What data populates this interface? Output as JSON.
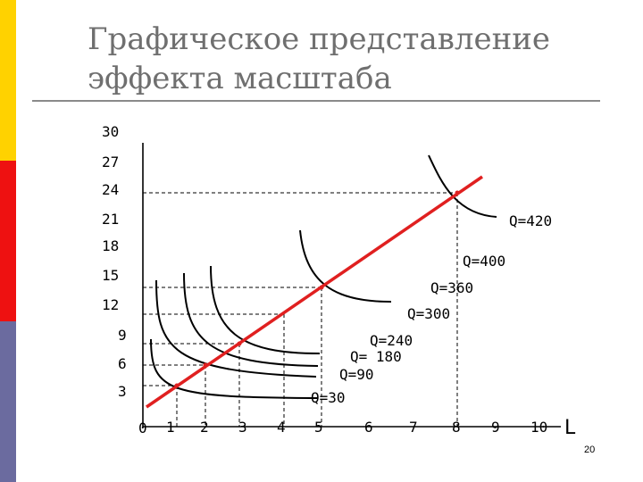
{
  "slide": {
    "title_line1": "Графическое представление",
    "title_line2": "эффекта масштаба",
    "slide_number": "20",
    "sidebar_colors": [
      "#ffd200",
      "#ee1111",
      "#6b6b9f"
    ]
  },
  "chart_data": {
    "type": "diagram",
    "x_axis_label": "L",
    "x_ticks": [
      0,
      1,
      2,
      3,
      4,
      5,
      6,
      7,
      8,
      9,
      10
    ],
    "y_ticks": [
      3,
      6,
      9,
      12,
      15,
      18,
      21,
      24,
      27,
      30
    ],
    "ray": {
      "from": [
        0,
        0
      ],
      "to": [
        8.8,
        25.2
      ],
      "color": "#e02020"
    },
    "isoquant_labels": [
      "Q=420",
      "Q=400",
      "Q=360",
      "Q=300",
      "Q=240",
      "Q= 180",
      "Q=90",
      "Q=30"
    ],
    "ray_points": [
      [
        1,
        3
      ],
      [
        2,
        6
      ],
      [
        3,
        9
      ],
      [
        5,
        15
      ],
      [
        8,
        24
      ]
    ]
  }
}
